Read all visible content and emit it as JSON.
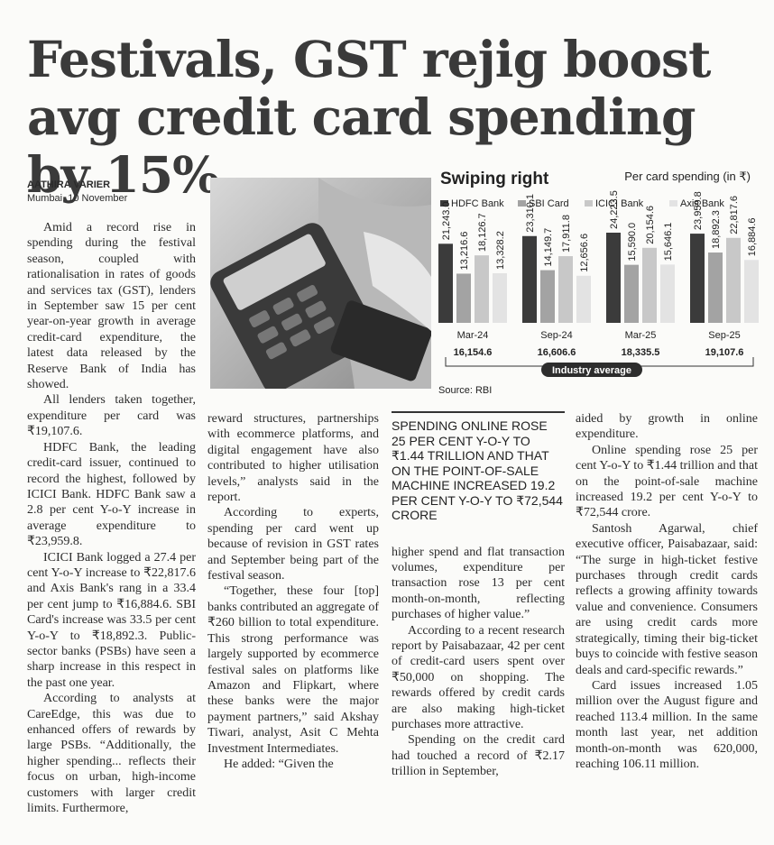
{
  "headline": "Festivals, GST rejig boost avg credit card spending by 15%",
  "byline": {
    "author": "AATHIRA VARIER",
    "dateline": "Mumbai, 10 November"
  },
  "columns": [
    {
      "paragraphs": [
        "Amid a record rise in spending during the festival season, coupled with rationalisation in rates of goods and services tax (GST), lenders in September saw 15 per cent year-on-year growth in average credit-card expenditure, the latest data released by the Reserve Bank of India has showed.",
        "All lenders taken together, expenditure per card was ₹19,107.6.",
        "HDFC Bank, the leading credit-card issuer, continued to record the highest, followed by ICICI Bank. HDFC Bank saw a 2.8 per cent Y-o-Y increase in average expenditure to ₹23,959.8.",
        "ICICI Bank logged a 27.4 per cent Y-o-Y increase to ₹22,817.6 and Axis Bank's rang in a 33.4 per cent jump to ₹16,884.6. SBI Card's increase was 33.5 per cent Y-o-Y to ₹18,892.3. Public-sector banks (PSBs) have seen a sharp increase in this respect in the past one year.",
        "According to analysts at CareEdge, this was due to enhanced offers of rewards by large PSBs. “Additionally, the higher spending... reflects their focus on urban, high-income customers with larger credit limits. Furthermore,"
      ]
    },
    {
      "paragraphs": [
        "reward structures, partnerships with ecommerce platforms, and digital engagement have also contributed to higher utilisation levels,” analysts said in the report.",
        "According to experts, spending per card went up because of revision in GST rates and September being part of the festival season.",
        "“Together, these four [top] banks contributed an aggregate of ₹260 billion to total expenditure. This strong performance was largely supported by ecommerce festival sales on platforms like Amazon and Flipkart, where these banks were the major payment partners,” said Akshay Tiwari, analyst, Asit C Mehta Investment Intermediates.",
        "He added: “Given the"
      ]
    },
    {
      "pull_quote": "SPENDING ONLINE ROSE 25 PER CENT Y-O-Y TO ₹1.44 TRILLION AND THAT ON THE POINT-OF-SALE MACHINE INCREASED 19.2 PER CENT Y-O-Y TO ₹72,544 CRORE",
      "paragraphs": [
        "higher spend and flat transaction volumes, expenditure per transaction rose 13 per cent month-on-month, reflecting purchases of higher value.”",
        "According to a recent research report by Paisabazaar, 42 per cent of credit-card users spent over ₹50,000 on shopping. The rewards offered by credit cards are also making high-ticket purchases more attractive.",
        "Spending on the credit card had touched a record of ₹2.17 trillion in September,"
      ]
    },
    {
      "paragraphs": [
        "aided by growth in online expenditure.",
        "Online spending rose 25 per cent Y-o-Y to ₹1.44 trillion and that on the point-of-sale machine increased 19.2 per cent Y-o-Y to ₹72,544 crore.",
        "Santosh Agarwal, chief executive officer, Paisabazaar, said: “The surge in high-ticket festive purchases through credit cards reflects a growing affinity towards value and convenience. Consumers are using credit cards more strategically, timing their big-ticket buys to coincide with festive season deals and card-specific rewards.”",
        "Card issues increased 1.05 million over the August figure and reached 113.4 million. In the same month last year, net addition month-on-month was 620,000, reaching 106.11 million."
      ]
    }
  ],
  "chart_data": {
    "type": "bar",
    "title": "Swiping right",
    "subtitle": "Per card spending (in ₹)",
    "categories": [
      "Mar-24",
      "Sep-24",
      "Mar-25",
      "Sep-25"
    ],
    "series": [
      {
        "name": "HDFC Bank",
        "color": "#3b3b3b",
        "values": [
          21243.0,
          23310.1,
          24223.5,
          23959.8
        ],
        "value_labels": [
          "21,243.0",
          "23,310.1",
          "24,223.5",
          "23,959.8"
        ]
      },
      {
        "name": "SBI Card",
        "color": "#a3a3a3",
        "values": [
          13216.6,
          14149.7,
          15590.0,
          18892.3
        ],
        "value_labels": [
          "13,216.6",
          "14,149.7",
          "15,590.0",
          "18,892.3"
        ]
      },
      {
        "name": "ICICI Bank",
        "color": "#c8c8c8",
        "values": [
          18126.7,
          17911.8,
          20154.6,
          22817.6
        ],
        "value_labels": [
          "18,126.7",
          "17,911.8",
          "20,154.6",
          "22,817.6"
        ]
      },
      {
        "name": "Axis Bank",
        "color": "#e3e3e3",
        "values": [
          13328.2,
          12656.6,
          15646.1,
          16884.6
        ],
        "value_labels": [
          "13,328.2",
          "12,656.6",
          "15,646.1",
          "16,884.6"
        ]
      }
    ],
    "industry_average": {
      "label": "Industry average",
      "values": [
        16154.6,
        16606.6,
        18335.5,
        19107.6
      ],
      "value_labels": [
        "16,154.6",
        "16,606.6",
        "18,335.5",
        "19,107.6"
      ]
    },
    "source": "Source: RBI"
  }
}
